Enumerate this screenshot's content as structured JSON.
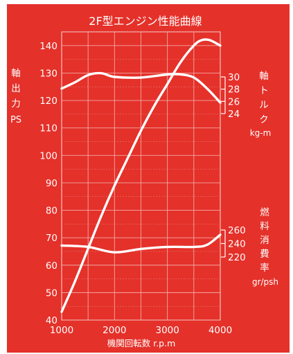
{
  "chart_data": {
    "type": "line",
    "title": "2F型エンジン性能曲線",
    "xlabel": "機関回転数 r.p.m",
    "x_ticks": [
      1000,
      2000,
      3000,
      4000
    ],
    "xlim": [
      1000,
      4000
    ],
    "grid": true,
    "axes": {
      "power": {
        "label_chars": [
          "軸",
          "出",
          "力"
        ],
        "unit": "PS",
        "ylim": [
          40,
          145
        ],
        "ticks": [
          40,
          50,
          60,
          70,
          80,
          90,
          100,
          110,
          120,
          130,
          140
        ]
      },
      "torque": {
        "label_chars": [
          "軸",
          "ト",
          "ル",
          "ク"
        ],
        "unit": "kg-m",
        "ticks": [
          30,
          28,
          26,
          24
        ]
      },
      "fuel": {
        "label_chars": [
          "燃",
          "料",
          "消",
          "費",
          "率"
        ],
        "unit": "gr/psh",
        "ticks": [
          260,
          240,
          220
        ]
      }
    },
    "series": [
      {
        "axis": "power",
        "x": [
          1000,
          1250,
          1500,
          1750,
          2000,
          2250,
          2500,
          2750,
          3000,
          3250,
          3500,
          3650,
          3800,
          4000
        ],
        "y": [
          43,
          54,
          66,
          78,
          89,
          99,
          109,
          118,
          126,
          134,
          140,
          142,
          142,
          140
        ]
      },
      {
        "axis": "torque",
        "x": [
          1000,
          1250,
          1500,
          1750,
          2000,
          2500,
          3000,
          3250,
          3500,
          3750,
          4000
        ],
        "y": [
          28.1,
          29.1,
          30.3,
          30.6,
          30.0,
          29.9,
          30.4,
          30.4,
          29.9,
          28.1,
          25.8
        ]
      },
      {
        "axis": "fuel",
        "x": [
          1000,
          1500,
          2000,
          2500,
          3000,
          3500,
          3750,
          4000
        ],
        "y": [
          237,
          235,
          227,
          232,
          235,
          235,
          238,
          253
        ]
      }
    ]
  }
}
